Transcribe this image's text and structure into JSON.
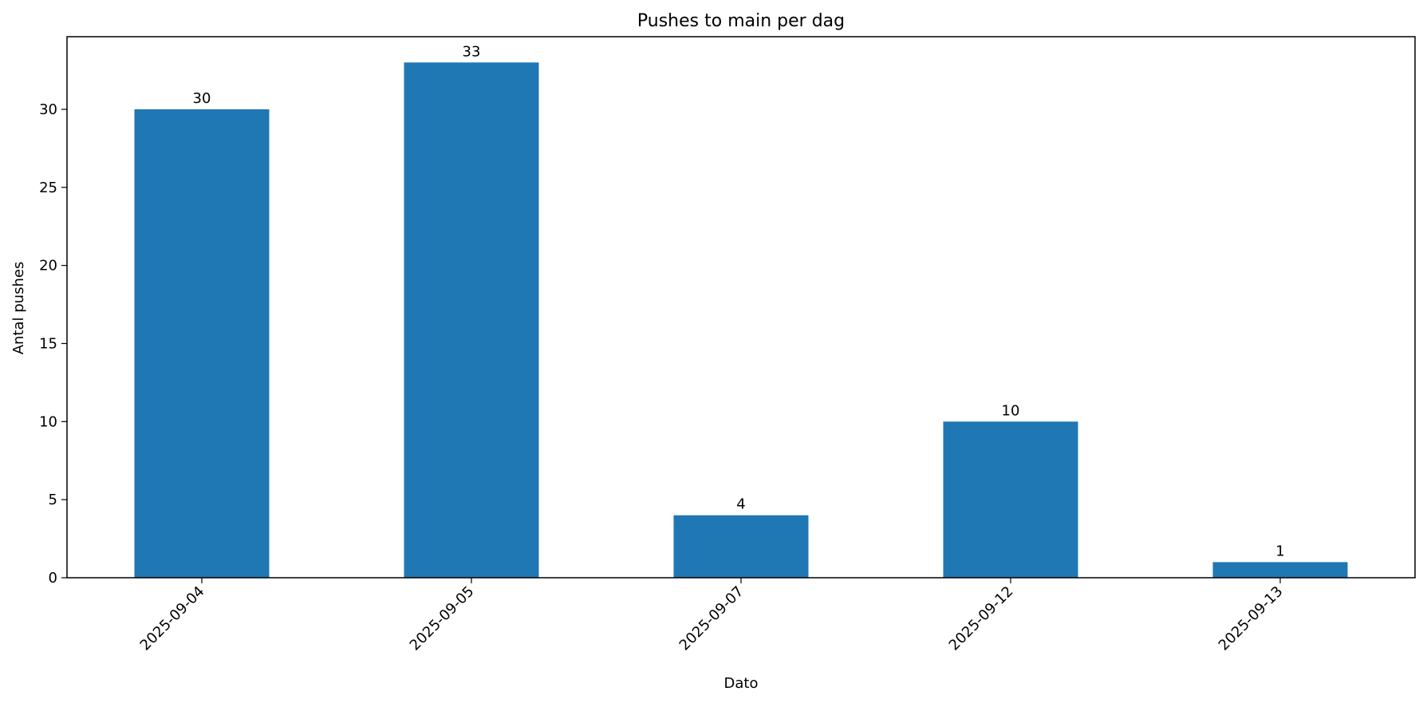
{
  "chart_data": {
    "type": "bar",
    "title": "Pushes to main per dag",
    "xlabel": "Dato",
    "ylabel": "Antal pushes",
    "categories": [
      "2025-09-04",
      "2025-09-05",
      "2025-09-07",
      "2025-09-12",
      "2025-09-13"
    ],
    "values": [
      30,
      33,
      4,
      10,
      1
    ],
    "data_labels": [
      "30",
      "33",
      "4",
      "10",
      "1"
    ],
    "ylim": [
      0,
      34.65
    ],
    "yticks": [
      0,
      5,
      10,
      15,
      20,
      25,
      30
    ],
    "ytick_labels": [
      "0",
      "5",
      "10",
      "15",
      "20",
      "25",
      "30"
    ],
    "grid": false,
    "legend": "none",
    "xtick_rotation_deg": 45,
    "bar_color": "#1f77b4"
  }
}
